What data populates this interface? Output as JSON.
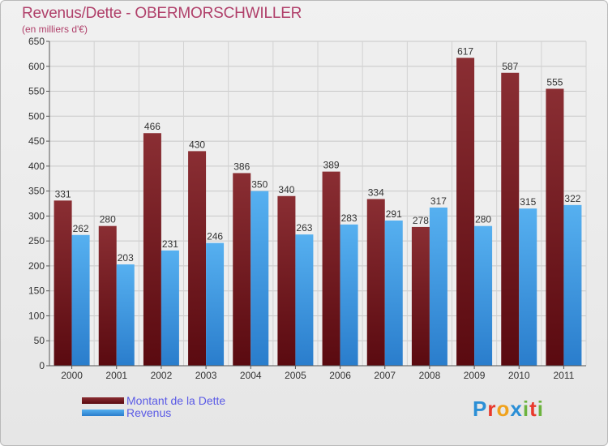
{
  "header": {
    "title": "Revenus/Dette - OBERMORSCHWILLER",
    "subtitle": "(en milliers d'€)"
  },
  "legend": {
    "debt_label": "Montant de la Dette",
    "revenue_label": "Revenus"
  },
  "logo": {
    "text": "Proxiti",
    "letters": [
      {
        "char": "P",
        "color": "#2b8fd6"
      },
      {
        "char": "r",
        "color": "#e8392c"
      },
      {
        "char": "o",
        "color": "#f0a21c"
      },
      {
        "char": "x",
        "color": "#2b8fd6"
      },
      {
        "char": "i",
        "color": "#6cb33e"
      },
      {
        "char": "t",
        "color": "#e8392c"
      },
      {
        "char": "i",
        "color": "#6cb33e"
      }
    ]
  },
  "colors": {
    "debt": "#7a2226",
    "revenue": "#4aa3e8",
    "title": "#b0406a",
    "legend_text": "#5a5ae6"
  },
  "chart_data": {
    "type": "bar",
    "title": "Revenus/Dette - OBERMORSCHWILLER",
    "ylabel": "(en milliers d'€)",
    "xlabel": "",
    "categories": [
      "2000",
      "2001",
      "2002",
      "2003",
      "2004",
      "2005",
      "2006",
      "2007",
      "2008",
      "2009",
      "2010",
      "2011"
    ],
    "series": [
      {
        "name": "Montant de la Dette",
        "values": [
          331,
          280,
          466,
          430,
          386,
          340,
          389,
          334,
          278,
          617,
          587,
          555
        ]
      },
      {
        "name": "Revenus",
        "values": [
          262,
          203,
          231,
          246,
          350,
          263,
          283,
          291,
          317,
          280,
          315,
          322
        ]
      }
    ],
    "ylim": [
      0,
      650
    ],
    "yticks": [
      0,
      50,
      100,
      150,
      200,
      250,
      300,
      350,
      400,
      450,
      500,
      550,
      600,
      650
    ],
    "grid": true,
    "legend_position": "bottom-left"
  }
}
